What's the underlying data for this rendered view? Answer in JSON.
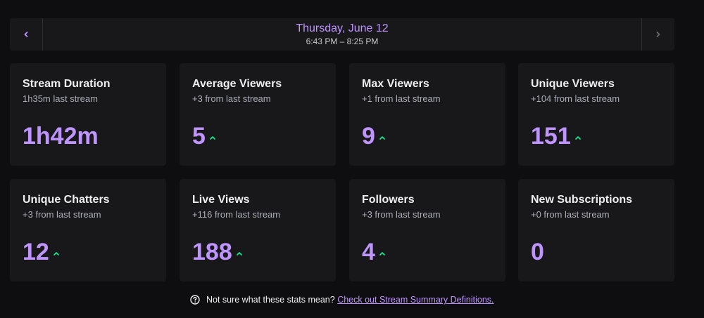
{
  "date_nav": {
    "title": "Thursday, June 12",
    "time_range": "6:43 PM – 8:25 PM"
  },
  "colors": {
    "accent": "#bf94ff",
    "trend_up": "#00f593",
    "card_bg": "#18181b",
    "page_bg": "#0e0e10"
  },
  "stats": [
    {
      "title": "Stream Duration",
      "comparison": "1h35m last stream",
      "value": "1h42m",
      "trend": "none"
    },
    {
      "title": "Average Viewers",
      "comparison": "+3 from last stream",
      "value": "5",
      "trend": "up"
    },
    {
      "title": "Max Viewers",
      "comparison": "+1 from last stream",
      "value": "9",
      "trend": "up"
    },
    {
      "title": "Unique Viewers",
      "comparison": "+104 from last stream",
      "value": "151",
      "trend": "up"
    },
    {
      "title": "Unique Chatters",
      "comparison": "+3 from last stream",
      "value": "12",
      "trend": "up"
    },
    {
      "title": "Live Views",
      "comparison": "+116 from last stream",
      "value": "188",
      "trend": "up"
    },
    {
      "title": "Followers",
      "comparison": "+3 from last stream",
      "value": "4",
      "trend": "up"
    },
    {
      "title": "New Subscriptions",
      "comparison": "+0 from last stream",
      "value": "0",
      "trend": "none"
    }
  ],
  "footer": {
    "text": "Not sure what these stats mean?",
    "link_text": "Check out Stream Summary Definitions.",
    "icon": "help-circle-icon"
  }
}
